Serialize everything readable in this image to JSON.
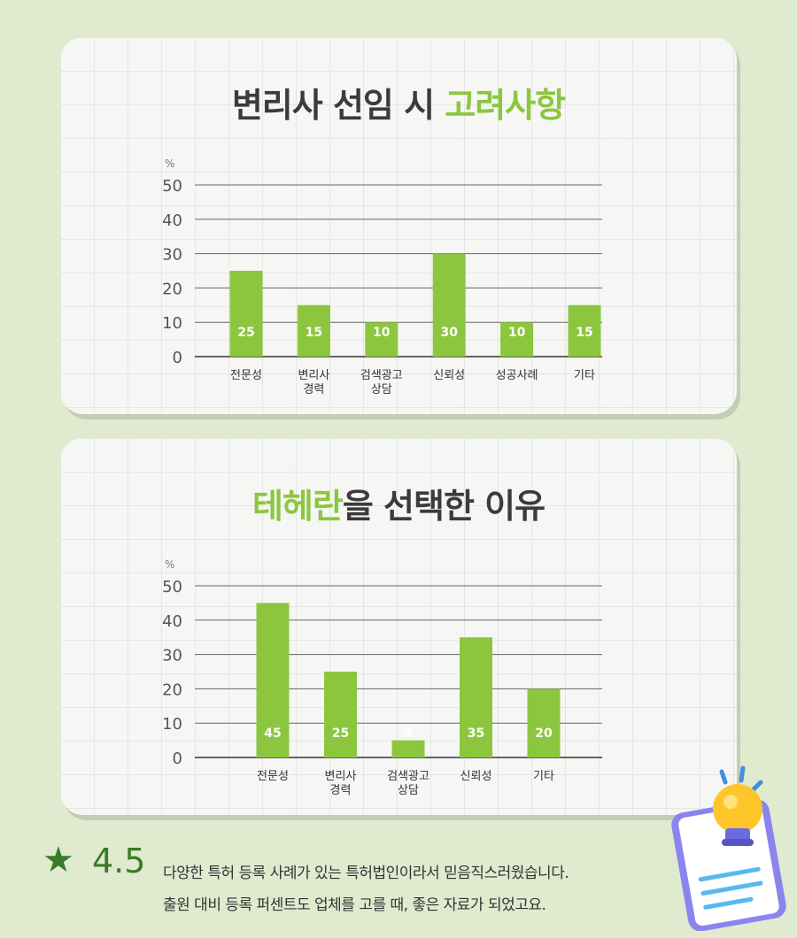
{
  "chart_data": [
    {
      "type": "bar",
      "title_main": "변리사 선임 시 ",
      "title_accent": "고려사항",
      "unit_label": "%",
      "yticks": [
        "50",
        "40",
        "30",
        "20",
        "10",
        "0"
      ],
      "ylim": [
        0,
        50
      ],
      "categories": [
        [
          "전문성"
        ],
        [
          "변리사",
          "경력"
        ],
        [
          "검색광고",
          "상담"
        ],
        [
          "신뢰성"
        ],
        [
          "성공사례"
        ],
        [
          "기타"
        ]
      ],
      "values": [
        25,
        15,
        10,
        30,
        10,
        15
      ],
      "grid": true
    },
    {
      "type": "bar",
      "title_accent": "테헤란",
      "title_main": "을 선택한 이유",
      "unit_label": "%",
      "yticks": [
        "50",
        "40",
        "30",
        "20",
        "10",
        "0"
      ],
      "ylim": [
        0,
        50
      ],
      "categories": [
        [
          "전문성"
        ],
        [
          "변리사",
          "경력"
        ],
        [
          "검색광고",
          "상담"
        ],
        [
          "신뢰성"
        ],
        [
          "기타"
        ]
      ],
      "values": [
        45,
        25,
        5,
        35,
        20
      ],
      "grid": true
    }
  ],
  "review": {
    "star": "★",
    "rating": "4.5",
    "line1": "다양한 특허 등록 사례가 있는 특허법인이라서 믿음직스러웠습니다.",
    "line2": "출원 대비 등록 퍼센트도 업체를 고를 때, 좋은 자료가 되었고요."
  },
  "colors": {
    "bar": "#8cc63f",
    "accent": "#8cc63f",
    "rating": "#3a7a2a",
    "background": "#dfeacf"
  },
  "decoration": {
    "icon": "lightbulb-notepad-icon"
  }
}
